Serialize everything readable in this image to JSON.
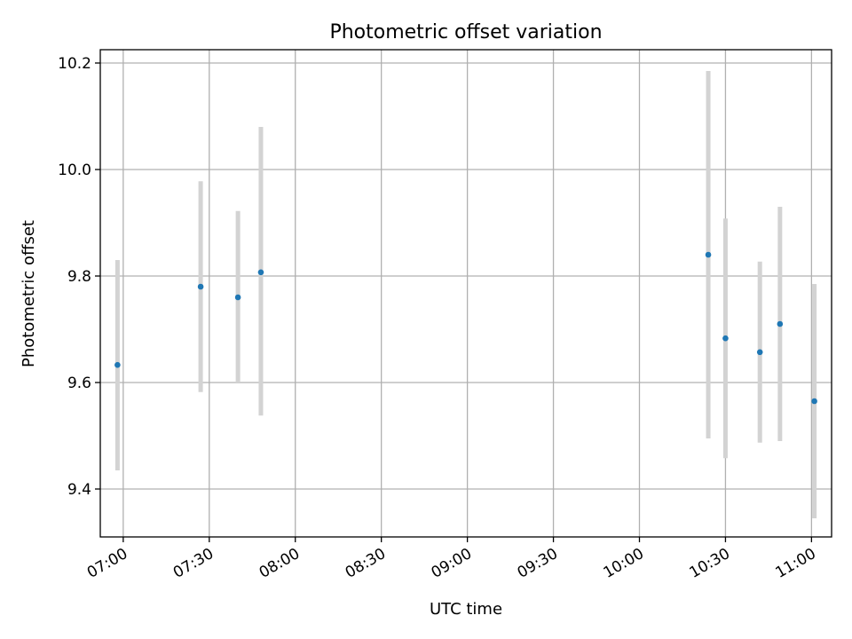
{
  "chart_data": {
    "type": "scatter",
    "title": "Photometric offset variation",
    "xlabel": "UTC time",
    "ylabel": "Photometric offset",
    "x_tick_labels": [
      "07:00",
      "07:30",
      "08:00",
      "08:30",
      "09:00",
      "09:30",
      "10:00",
      "10:30",
      "11:00"
    ],
    "x_ticks": [
      "07:00",
      "07:30",
      "08:00",
      "08:30",
      "09:00",
      "09:30",
      "10:00",
      "10:30",
      "11:00"
    ],
    "xlim": [
      "06:52",
      "11:07"
    ],
    "y_ticks": [
      9.4,
      9.6,
      9.8,
      10.0,
      10.2
    ],
    "y_tick_labels": [
      "9.4",
      "9.6",
      "9.8",
      "10.0",
      "10.2"
    ],
    "ylim": [
      9.31,
      10.225
    ],
    "grid": true,
    "points": [
      {
        "x": "06:58",
        "y": 9.633,
        "err_low": 9.435,
        "err_high": 9.83
      },
      {
        "x": "07:27",
        "y": 9.78,
        "err_low": 9.582,
        "err_high": 9.978
      },
      {
        "x": "07:40",
        "y": 9.76,
        "err_low": 9.6,
        "err_high": 9.922
      },
      {
        "x": "07:48",
        "y": 9.807,
        "err_low": 9.538,
        "err_high": 10.08
      },
      {
        "x": "10:24",
        "y": 9.84,
        "err_low": 9.495,
        "err_high": 10.185
      },
      {
        "x": "10:30",
        "y": 9.683,
        "err_low": 9.458,
        "err_high": 9.908
      },
      {
        "x": "10:42",
        "y": 9.657,
        "err_low": 9.487,
        "err_high": 9.827
      },
      {
        "x": "10:49",
        "y": 9.71,
        "err_low": 9.49,
        "err_high": 9.93
      },
      {
        "x": "11:01",
        "y": 9.565,
        "err_low": 9.345,
        "err_high": 9.785
      }
    ],
    "colors": {
      "marker": "#1f77b4",
      "errorbar": "#d3d3d3",
      "grid": "#b0b0b0"
    }
  }
}
